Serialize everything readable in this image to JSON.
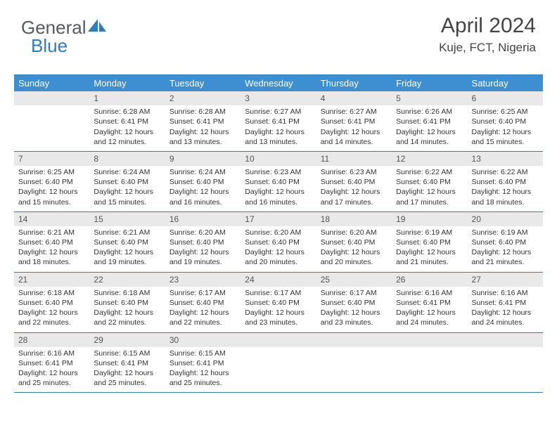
{
  "logo": {
    "text1": "General",
    "text2": "Blue",
    "icon_color": "#2f7bbf"
  },
  "header": {
    "month_title": "April 2024",
    "location": "Kuje, FCT, Nigeria"
  },
  "colors": {
    "header_bg": "#3d8fd1",
    "header_text": "#ffffff",
    "border": "#2f7bbf",
    "daynum_bg": "#e9e9e9",
    "body_text": "#333333"
  },
  "daynames": [
    "Sunday",
    "Monday",
    "Tuesday",
    "Wednesday",
    "Thursday",
    "Friday",
    "Saturday"
  ],
  "layout": {
    "cols": 7,
    "rows": 5,
    "cell_fontsize": 10.5,
    "dayname_fontsize": 13
  },
  "weeks": [
    [
      {
        "num": "",
        "lines": []
      },
      {
        "num": "1",
        "lines": [
          "Sunrise: 6:28 AM",
          "Sunset: 6:41 PM",
          "Daylight: 12 hours",
          "and 12 minutes."
        ]
      },
      {
        "num": "2",
        "lines": [
          "Sunrise: 6:28 AM",
          "Sunset: 6:41 PM",
          "Daylight: 12 hours",
          "and 13 minutes."
        ]
      },
      {
        "num": "3",
        "lines": [
          "Sunrise: 6:27 AM",
          "Sunset: 6:41 PM",
          "Daylight: 12 hours",
          "and 13 minutes."
        ]
      },
      {
        "num": "4",
        "lines": [
          "Sunrise: 6:27 AM",
          "Sunset: 6:41 PM",
          "Daylight: 12 hours",
          "and 14 minutes."
        ]
      },
      {
        "num": "5",
        "lines": [
          "Sunrise: 6:26 AM",
          "Sunset: 6:41 PM",
          "Daylight: 12 hours",
          "and 14 minutes."
        ]
      },
      {
        "num": "6",
        "lines": [
          "Sunrise: 6:25 AM",
          "Sunset: 6:40 PM",
          "Daylight: 12 hours",
          "and 15 minutes."
        ]
      }
    ],
    [
      {
        "num": "7",
        "lines": [
          "Sunrise: 6:25 AM",
          "Sunset: 6:40 PM",
          "Daylight: 12 hours",
          "and 15 minutes."
        ]
      },
      {
        "num": "8",
        "lines": [
          "Sunrise: 6:24 AM",
          "Sunset: 6:40 PM",
          "Daylight: 12 hours",
          "and 15 minutes."
        ]
      },
      {
        "num": "9",
        "lines": [
          "Sunrise: 6:24 AM",
          "Sunset: 6:40 PM",
          "Daylight: 12 hours",
          "and 16 minutes."
        ]
      },
      {
        "num": "10",
        "lines": [
          "Sunrise: 6:23 AM",
          "Sunset: 6:40 PM",
          "Daylight: 12 hours",
          "and 16 minutes."
        ]
      },
      {
        "num": "11",
        "lines": [
          "Sunrise: 6:23 AM",
          "Sunset: 6:40 PM",
          "Daylight: 12 hours",
          "and 17 minutes."
        ]
      },
      {
        "num": "12",
        "lines": [
          "Sunrise: 6:22 AM",
          "Sunset: 6:40 PM",
          "Daylight: 12 hours",
          "and 17 minutes."
        ]
      },
      {
        "num": "13",
        "lines": [
          "Sunrise: 6:22 AM",
          "Sunset: 6:40 PM",
          "Daylight: 12 hours",
          "and 18 minutes."
        ]
      }
    ],
    [
      {
        "num": "14",
        "lines": [
          "Sunrise: 6:21 AM",
          "Sunset: 6:40 PM",
          "Daylight: 12 hours",
          "and 18 minutes."
        ]
      },
      {
        "num": "15",
        "lines": [
          "Sunrise: 6:21 AM",
          "Sunset: 6:40 PM",
          "Daylight: 12 hours",
          "and 19 minutes."
        ]
      },
      {
        "num": "16",
        "lines": [
          "Sunrise: 6:20 AM",
          "Sunset: 6:40 PM",
          "Daylight: 12 hours",
          "and 19 minutes."
        ]
      },
      {
        "num": "17",
        "lines": [
          "Sunrise: 6:20 AM",
          "Sunset: 6:40 PM",
          "Daylight: 12 hours",
          "and 20 minutes."
        ]
      },
      {
        "num": "18",
        "lines": [
          "Sunrise: 6:20 AM",
          "Sunset: 6:40 PM",
          "Daylight: 12 hours",
          "and 20 minutes."
        ]
      },
      {
        "num": "19",
        "lines": [
          "Sunrise: 6:19 AM",
          "Sunset: 6:40 PM",
          "Daylight: 12 hours",
          "and 21 minutes."
        ]
      },
      {
        "num": "20",
        "lines": [
          "Sunrise: 6:19 AM",
          "Sunset: 6:40 PM",
          "Daylight: 12 hours",
          "and 21 minutes."
        ]
      }
    ],
    [
      {
        "num": "21",
        "lines": [
          "Sunrise: 6:18 AM",
          "Sunset: 6:40 PM",
          "Daylight: 12 hours",
          "and 22 minutes."
        ]
      },
      {
        "num": "22",
        "lines": [
          "Sunrise: 6:18 AM",
          "Sunset: 6:40 PM",
          "Daylight: 12 hours",
          "and 22 minutes."
        ]
      },
      {
        "num": "23",
        "lines": [
          "Sunrise: 6:17 AM",
          "Sunset: 6:40 PM",
          "Daylight: 12 hours",
          "and 22 minutes."
        ]
      },
      {
        "num": "24",
        "lines": [
          "Sunrise: 6:17 AM",
          "Sunset: 6:40 PM",
          "Daylight: 12 hours",
          "and 23 minutes."
        ]
      },
      {
        "num": "25",
        "lines": [
          "Sunrise: 6:17 AM",
          "Sunset: 6:40 PM",
          "Daylight: 12 hours",
          "and 23 minutes."
        ]
      },
      {
        "num": "26",
        "lines": [
          "Sunrise: 6:16 AM",
          "Sunset: 6:41 PM",
          "Daylight: 12 hours",
          "and 24 minutes."
        ]
      },
      {
        "num": "27",
        "lines": [
          "Sunrise: 6:16 AM",
          "Sunset: 6:41 PM",
          "Daylight: 12 hours",
          "and 24 minutes."
        ]
      }
    ],
    [
      {
        "num": "28",
        "lines": [
          "Sunrise: 6:16 AM",
          "Sunset: 6:41 PM",
          "Daylight: 12 hours",
          "and 25 minutes."
        ]
      },
      {
        "num": "29",
        "lines": [
          "Sunrise: 6:15 AM",
          "Sunset: 6:41 PM",
          "Daylight: 12 hours",
          "and 25 minutes."
        ]
      },
      {
        "num": "30",
        "lines": [
          "Sunrise: 6:15 AM",
          "Sunset: 6:41 PM",
          "Daylight: 12 hours",
          "and 25 minutes."
        ]
      },
      {
        "num": "",
        "lines": []
      },
      {
        "num": "",
        "lines": []
      },
      {
        "num": "",
        "lines": []
      },
      {
        "num": "",
        "lines": []
      }
    ]
  ]
}
